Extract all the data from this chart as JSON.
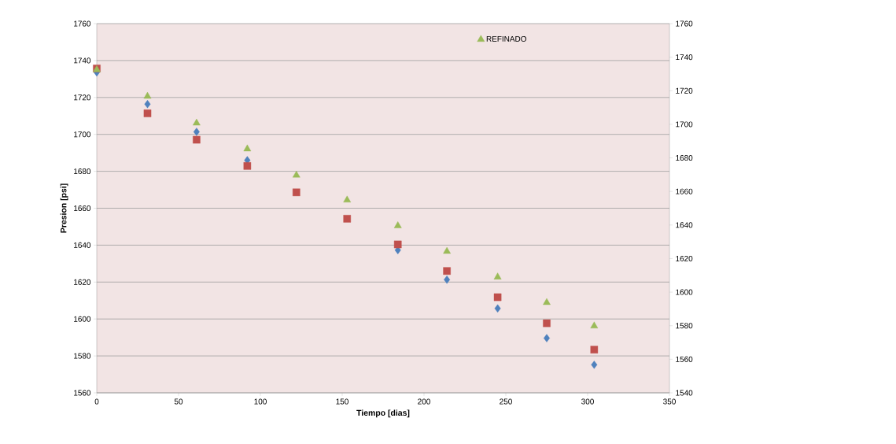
{
  "chart_data": {
    "type": "scatter",
    "xlabel": "Tiempo [dias]",
    "ylabel": "Presion [psi]",
    "x": [
      0,
      31,
      61,
      92,
      122,
      153,
      184,
      214,
      245,
      275,
      304
    ],
    "series": [
      {
        "color": "#4f81bd",
        "marker": "diamond",
        "values": [
          1733.6,
          1716.4,
          1701.4,
          1686,
          null,
          null,
          1637.3,
          1621.3,
          1605.7,
          1589.6,
          1575.2
        ]
      },
      {
        "color": "#c0504d",
        "marker": "square",
        "values": [
          1735.7,
          1711.4,
          1697.1,
          1682.9,
          1668.6,
          1654.3,
          1640.4,
          1626,
          1611.8,
          1597.7,
          1583.4
        ]
      },
      {
        "name": "REFINADO",
        "color": "#9bbb59",
        "marker": "triangle",
        "values": [
          1735,
          1720.6,
          1706.1,
          1692.1,
          1677.9,
          1664.4,
          1650.5,
          1636.6,
          1622.7,
          1608.9,
          1596.2
        ]
      }
    ],
    "xlim": [
      0,
      350
    ],
    "xticks": [
      0,
      50,
      100,
      150,
      200,
      250,
      300,
      350
    ],
    "ylim": [
      1560,
      1760
    ],
    "yticks": [
      1560,
      1580,
      1600,
      1620,
      1640,
      1660,
      1680,
      1700,
      1720,
      1740,
      1760
    ],
    "y2lim": [
      1540,
      1760
    ],
    "y2ticks": [
      1540,
      1560,
      1580,
      1600,
      1620,
      1640,
      1660,
      1680,
      1700,
      1720,
      1740,
      1760
    ],
    "grid": "y",
    "legend": "top right"
  }
}
